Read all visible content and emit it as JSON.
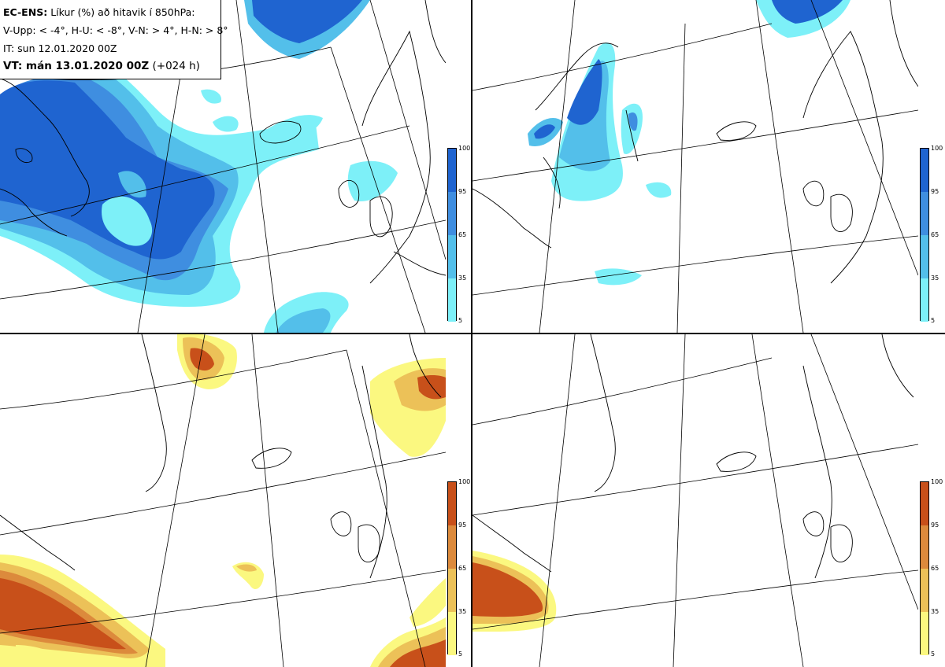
{
  "info": {
    "line1_bold": "EC-ENS:",
    "line1_text": "Líkur (%) að hitavik í 850hPa:",
    "line2": "V-Upp: < -4°, H-U: < -8°, V-N: > 4°, H-N: > 8°",
    "line3": "IT: sun 12.01.2020 00Z",
    "line4_bold": "VT: mán 13.01.2020 00Z",
    "line4_text": "(+024 h)"
  },
  "colorbars": {
    "cold": {
      "ticks": [
        "100",
        "95",
        "65",
        "35",
        "5"
      ],
      "colors": [
        "#1f64d0",
        "#3f8ee0",
        "#53bfea",
        "#7df0f8"
      ]
    },
    "warm": {
      "ticks": [
        "100",
        "95",
        "65",
        "35",
        "5"
      ],
      "colors": [
        "#c8501a",
        "#dc8a3c",
        "#ecc158",
        "#fbf880"
      ]
    }
  },
  "panels": [
    {
      "id": "v-upp",
      "description_hidden": true
    },
    {
      "id": "h-u"
    },
    {
      "id": "v-n"
    },
    {
      "id": "h-n"
    }
  ]
}
